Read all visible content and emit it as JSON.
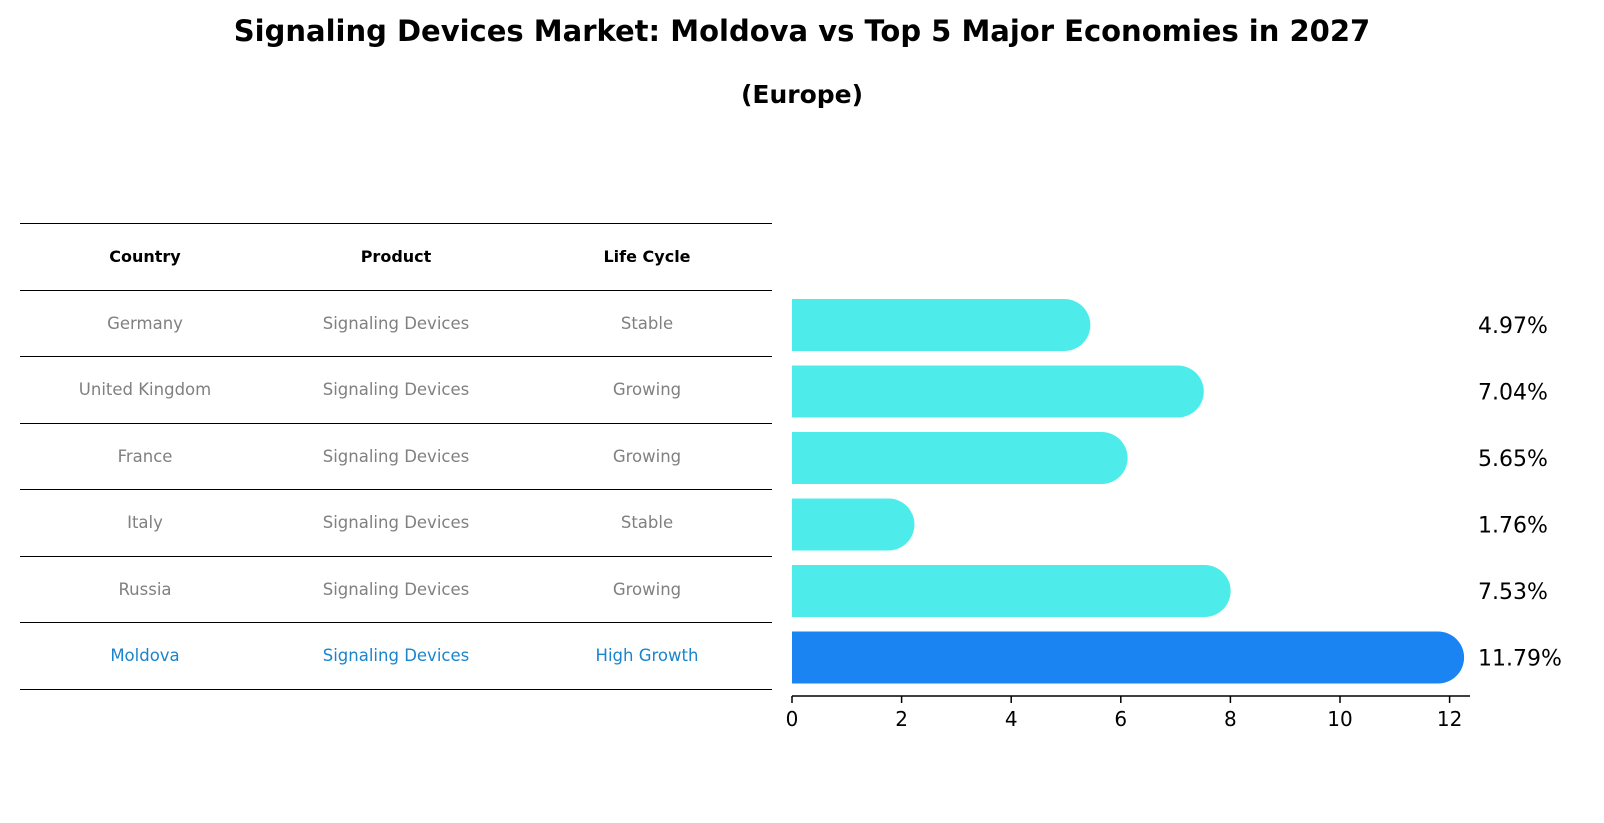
{
  "chart_data": {
    "type": "bar",
    "orientation": "horizontal",
    "title": "Signaling Devices Market: Moldova vs Top 5 Major Economies in 2027",
    "subtitle": "(Europe)",
    "table": {
      "headers": [
        "Country",
        "Product",
        "Life Cycle"
      ],
      "rows": [
        [
          "Germany",
          "Signaling Devices",
          "Stable"
        ],
        [
          "United Kingdom",
          "Signaling Devices",
          "Growing"
        ],
        [
          "France",
          "Signaling Devices",
          "Growing"
        ],
        [
          "Italy",
          "Signaling Devices",
          "Stable"
        ],
        [
          "Russia",
          "Signaling Devices",
          "Growing"
        ],
        [
          "Moldova",
          "Signaling Devices",
          "High Growth"
        ]
      ]
    },
    "categories": [
      "Germany",
      "United Kingdom",
      "France",
      "Italy",
      "Russia",
      "Moldova"
    ],
    "values": [
      4.97,
      7.04,
      5.65,
      1.76,
      7.53,
      11.79
    ],
    "value_labels": [
      "4.97%",
      "7.04%",
      "5.65%",
      "1.76%",
      "7.53%",
      "11.79%"
    ],
    "highlight": "Moldova",
    "xlim": [
      0,
      12.4
    ],
    "xticks": [
      0,
      2,
      4,
      6,
      8,
      10,
      12
    ],
    "xtick_labels": [
      "0",
      "2",
      "4",
      "6",
      "8",
      "10",
      "12"
    ],
    "xlabel": "",
    "ylabel": "",
    "grid": false,
    "colors": {
      "bar": "#4deceb",
      "highlight_bar": "#1a85f2",
      "muted_text": "#808080",
      "highlight_text": "#1a85cc",
      "axis": "#000000"
    }
  }
}
